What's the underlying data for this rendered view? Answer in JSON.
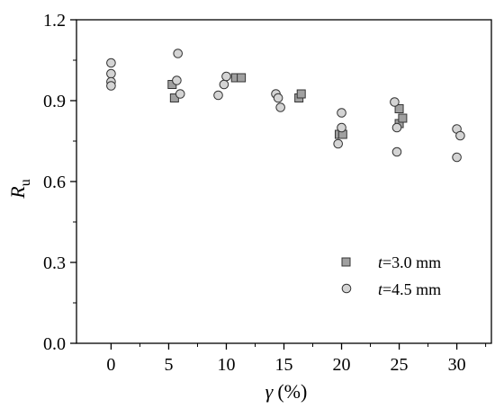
{
  "chart_data": {
    "type": "scatter",
    "xlabel_symbol": "γ",
    "xlabel_unit": "(%)",
    "ylabel_main": "R",
    "ylabel_sub": "u",
    "xlim": [
      -3,
      33
    ],
    "ylim": [
      0,
      1.2
    ],
    "xticks": [
      0,
      5,
      10,
      15,
      20,
      25,
      30
    ],
    "yticks": [
      0.0,
      0.3,
      0.6,
      0.9,
      1.2
    ],
    "ytick_labels": [
      "0.0",
      "0.3",
      "0.6",
      "0.9",
      "1.2"
    ],
    "grid": false,
    "legend_position": "lower-right",
    "series": [
      {
        "name": "t=3.0 mm",
        "name_italic": "t",
        "name_rest": "=3.0 mm",
        "marker": "square",
        "color": "#a0a0a0",
        "points": [
          {
            "x": 5.3,
            "y": 0.96
          },
          {
            "x": 5.5,
            "y": 0.91
          },
          {
            "x": 10.8,
            "y": 0.985
          },
          {
            "x": 11.3,
            "y": 0.985
          },
          {
            "x": 16.3,
            "y": 0.91
          },
          {
            "x": 16.5,
            "y": 0.925
          },
          {
            "x": 19.8,
            "y": 0.775
          },
          {
            "x": 20.1,
            "y": 0.775
          },
          {
            "x": 25.0,
            "y": 0.87
          },
          {
            "x": 25.0,
            "y": 0.815
          },
          {
            "x": 25.3,
            "y": 0.835
          }
        ]
      },
      {
        "name": "t=4.5 mm",
        "name_italic": "t",
        "name_rest": "=4.5 mm",
        "marker": "circle",
        "color": "#d4d4d4",
        "points": [
          {
            "x": 0.0,
            "y": 1.04
          },
          {
            "x": 0.0,
            "y": 1.0
          },
          {
            "x": 0.0,
            "y": 0.97
          },
          {
            "x": 0.0,
            "y": 0.955
          },
          {
            "x": 5.8,
            "y": 1.075
          },
          {
            "x": 5.7,
            "y": 0.975
          },
          {
            "x": 6.0,
            "y": 0.925
          },
          {
            "x": 9.3,
            "y": 0.92
          },
          {
            "x": 9.8,
            "y": 0.96
          },
          {
            "x": 10.0,
            "y": 0.99
          },
          {
            "x": 14.3,
            "y": 0.925
          },
          {
            "x": 14.5,
            "y": 0.91
          },
          {
            "x": 14.7,
            "y": 0.875
          },
          {
            "x": 19.7,
            "y": 0.74
          },
          {
            "x": 20.0,
            "y": 0.8
          },
          {
            "x": 20.0,
            "y": 0.855
          },
          {
            "x": 24.6,
            "y": 0.895
          },
          {
            "x": 24.8,
            "y": 0.8
          },
          {
            "x": 24.8,
            "y": 0.71
          },
          {
            "x": 30.0,
            "y": 0.795
          },
          {
            "x": 30.3,
            "y": 0.77
          },
          {
            "x": 30.0,
            "y": 0.69
          }
        ]
      }
    ]
  }
}
